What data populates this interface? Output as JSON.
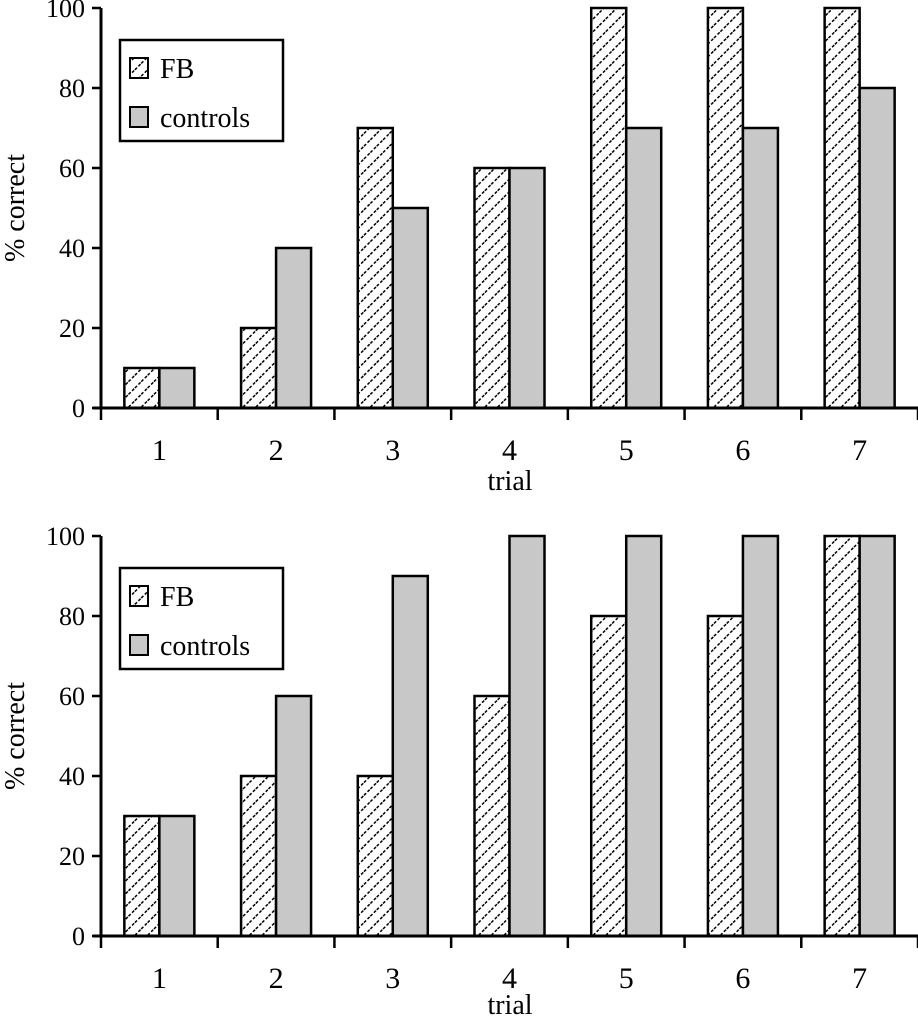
{
  "chart_data": [
    {
      "type": "bar",
      "title": "",
      "xlabel": "trial",
      "ylabel": "% correct",
      "categories": [
        "1",
        "2",
        "3",
        "4",
        "5",
        "6",
        "7"
      ],
      "ylim": [
        0,
        100
      ],
      "yticks": [
        "0",
        "20",
        "40",
        "60",
        "80",
        "100"
      ],
      "grid": false,
      "legend_position": "top-left",
      "series": [
        {
          "name": "FB",
          "pattern": "diagonal-hatch",
          "values": [
            10,
            20,
            70,
            60,
            100,
            100,
            100
          ]
        },
        {
          "name": "controls",
          "pattern": "solid",
          "color": "#c8c8c8",
          "values": [
            10,
            40,
            50,
            60,
            70,
            70,
            80
          ]
        }
      ]
    },
    {
      "type": "bar",
      "title": "",
      "xlabel": "trial",
      "ylabel": "% correct",
      "categories": [
        "1",
        "2",
        "3",
        "4",
        "5",
        "6",
        "7"
      ],
      "ylim": [
        0,
        100
      ],
      "yticks": [
        "0",
        "20",
        "40",
        "60",
        "80",
        "100"
      ],
      "grid": false,
      "legend_position": "top-left",
      "series": [
        {
          "name": "FB",
          "pattern": "diagonal-hatch",
          "values": [
            30,
            40,
            40,
            60,
            80,
            80,
            100
          ]
        },
        {
          "name": "controls",
          "pattern": "solid",
          "color": "#c8c8c8",
          "values": [
            30,
            60,
            90,
            100,
            100,
            100,
            100
          ]
        }
      ]
    }
  ]
}
